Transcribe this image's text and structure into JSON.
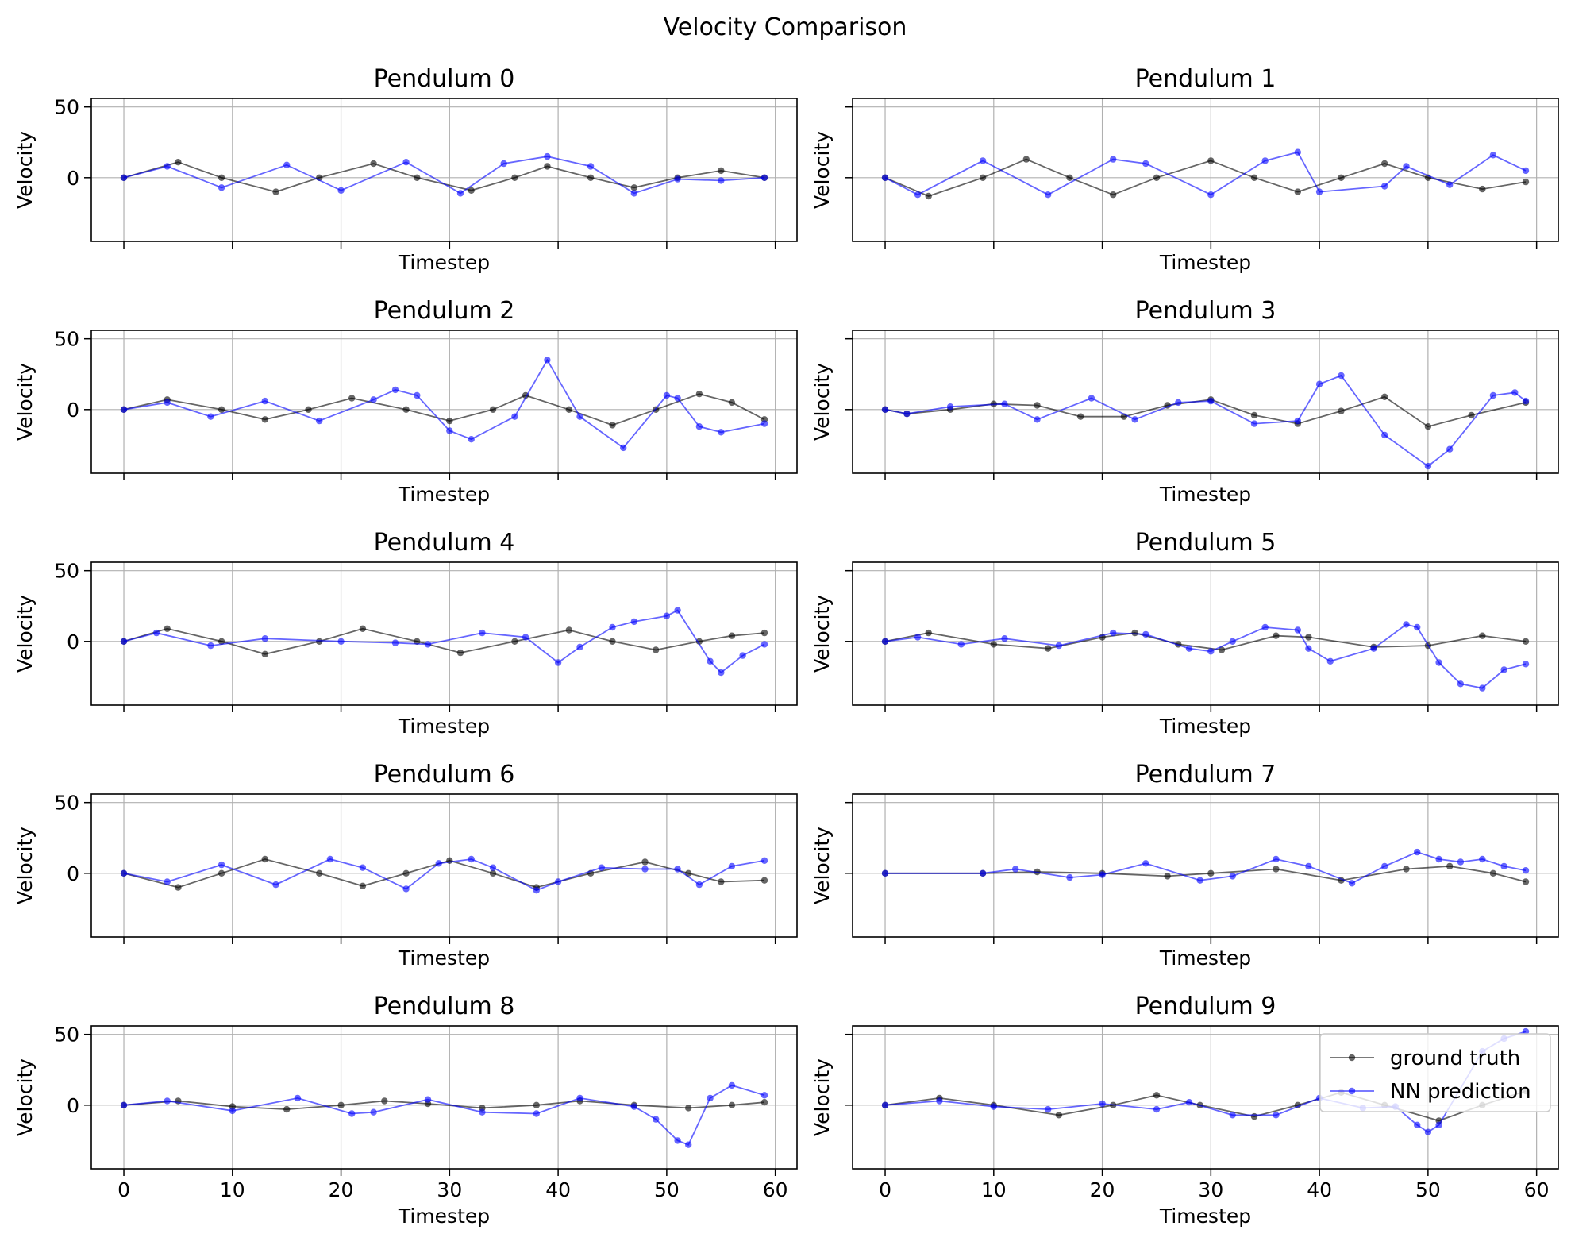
{
  "figure": {
    "title": "Velocity Comparison"
  },
  "colors": {
    "ground_truth": "#000000",
    "nn_prediction": "#0000ff",
    "grid": "#b0b0b0"
  },
  "legend": {
    "location": "upper-right",
    "panel": 9,
    "entries": [
      "ground truth",
      "NN prediction"
    ]
  },
  "chart_data": [
    {
      "type": "line",
      "title": "Pendulum 0",
      "xlabel": "Timestep",
      "ylabel": "Velocity",
      "xlim": [
        -3,
        62
      ],
      "ylim": [
        -45,
        56
      ],
      "xticks": [
        0,
        10,
        20,
        30,
        40,
        50,
        60
      ],
      "yticks": [
        0,
        50
      ],
      "grid": true,
      "series": [
        {
          "name": "ground truth",
          "x": [
            0,
            5,
            9,
            14,
            18,
            23,
            27,
            32,
            36,
            39,
            43,
            47,
            51,
            55,
            59
          ],
          "y": [
            0,
            11,
            0,
            -10,
            0,
            10,
            0,
            -9,
            0,
            8,
            0,
            -7,
            0,
            5,
            0
          ]
        },
        {
          "name": "NN prediction",
          "x": [
            0,
            4,
            9,
            15,
            20,
            26,
            31,
            35,
            39,
            43,
            47,
            51,
            55,
            59
          ],
          "y": [
            0,
            8,
            -7,
            9,
            -9,
            11,
            -11,
            10,
            15,
            8,
            -11,
            -1,
            -2,
            0
          ]
        }
      ]
    },
    {
      "type": "line",
      "title": "Pendulum 1",
      "xlabel": "Timestep",
      "ylabel": "Velocity",
      "xlim": [
        -3,
        62
      ],
      "ylim": [
        -45,
        56
      ],
      "xticks": [
        0,
        10,
        20,
        30,
        40,
        50,
        60
      ],
      "yticks": [
        0,
        50
      ],
      "grid": true,
      "series": [
        {
          "name": "ground truth",
          "x": [
            0,
            4,
            9,
            13,
            17,
            21,
            25,
            30,
            34,
            38,
            42,
            46,
            50,
            55,
            59
          ],
          "y": [
            0,
            -13,
            0,
            13,
            0,
            -12,
            0,
            12,
            0,
            -10,
            0,
            10,
            0,
            -8,
            -3
          ]
        },
        {
          "name": "NN prediction",
          "x": [
            0,
            3,
            9,
            15,
            21,
            24,
            30,
            35,
            38,
            40,
            46,
            48,
            52,
            56,
            59
          ],
          "y": [
            0,
            -12,
            12,
            -12,
            13,
            10,
            -12,
            12,
            18,
            -10,
            -6,
            8,
            -5,
            16,
            5
          ]
        }
      ]
    },
    {
      "type": "line",
      "title": "Pendulum 2",
      "xlabel": "Timestep",
      "ylabel": "Velocity",
      "xlim": [
        -3,
        62
      ],
      "ylim": [
        -45,
        56
      ],
      "xticks": [
        0,
        10,
        20,
        30,
        40,
        50,
        60
      ],
      "yticks": [
        0,
        50
      ],
      "grid": true,
      "series": [
        {
          "name": "ground truth",
          "x": [
            0,
            4,
            9,
            13,
            17,
            21,
            26,
            30,
            34,
            37,
            41,
            45,
            49,
            53,
            56,
            59
          ],
          "y": [
            0,
            7,
            0,
            -7,
            0,
            8,
            0,
            -8,
            0,
            10,
            0,
            -11,
            0,
            11,
            5,
            -7
          ]
        },
        {
          "name": "NN prediction",
          "x": [
            0,
            4,
            8,
            13,
            18,
            23,
            25,
            27,
            30,
            32,
            36,
            39,
            42,
            46,
            50,
            51,
            53,
            55,
            59
          ],
          "y": [
            0,
            5,
            -5,
            6,
            -8,
            7,
            14,
            10,
            -15,
            -21,
            -5,
            35,
            -5,
            -27,
            10,
            8,
            -12,
            -16,
            -10
          ]
        }
      ]
    },
    {
      "type": "line",
      "title": "Pendulum 3",
      "xlabel": "Timestep",
      "ylabel": "Velocity",
      "xlim": [
        -3,
        62
      ],
      "ylim": [
        -45,
        56
      ],
      "xticks": [
        0,
        10,
        20,
        30,
        40,
        50,
        60
      ],
      "yticks": [
        0,
        50
      ],
      "grid": true,
      "series": [
        {
          "name": "ground truth",
          "x": [
            0,
            2,
            6,
            10,
            14,
            18,
            22,
            26,
            30,
            34,
            38,
            42,
            46,
            50,
            54,
            59
          ],
          "y": [
            0,
            -3,
            0,
            4,
            3,
            -5,
            -5,
            3,
            7,
            -4,
            -10,
            -1,
            9,
            -12,
            -4,
            5
          ]
        },
        {
          "name": "NN prediction",
          "x": [
            0,
            2,
            6,
            11,
            14,
            19,
            23,
            27,
            30,
            34,
            38,
            40,
            42,
            46,
            50,
            52,
            56,
            58,
            59
          ],
          "y": [
            0,
            -3,
            2,
            4,
            -7,
            8,
            -7,
            5,
            6,
            -10,
            -8,
            18,
            24,
            -18,
            -40,
            -28,
            10,
            12,
            6
          ]
        }
      ]
    },
    {
      "type": "line",
      "title": "Pendulum 4",
      "xlabel": "Timestep",
      "ylabel": "Velocity",
      "xlim": [
        -3,
        62
      ],
      "ylim": [
        -45,
        56
      ],
      "xticks": [
        0,
        10,
        20,
        30,
        40,
        50,
        60
      ],
      "yticks": [
        0,
        50
      ],
      "grid": true,
      "series": [
        {
          "name": "ground truth",
          "x": [
            0,
            4,
            9,
            13,
            18,
            22,
            27,
            31,
            36,
            41,
            45,
            49,
            53,
            56,
            59
          ],
          "y": [
            0,
            9,
            0,
            -9,
            0,
            9,
            0,
            -8,
            0,
            8,
            0,
            -6,
            0,
            4,
            6
          ]
        },
        {
          "name": "NN prediction",
          "x": [
            0,
            3,
            8,
            13,
            20,
            25,
            28,
            33,
            37,
            40,
            42,
            45,
            47,
            50,
            51,
            54,
            55,
            57,
            59
          ],
          "y": [
            0,
            6,
            -3,
            2,
            0,
            -1,
            -2,
            6,
            3,
            -15,
            -4,
            10,
            14,
            18,
            22,
            -14,
            -22,
            -10,
            -2
          ]
        }
      ]
    },
    {
      "type": "line",
      "title": "Pendulum 5",
      "xlabel": "Timestep",
      "ylabel": "Velocity",
      "xlim": [
        -3,
        62
      ],
      "ylim": [
        -45,
        56
      ],
      "xticks": [
        0,
        10,
        20,
        30,
        40,
        50,
        60
      ],
      "yticks": [
        0,
        50
      ],
      "grid": true,
      "series": [
        {
          "name": "ground truth",
          "x": [
            0,
            4,
            10,
            15,
            20,
            23,
            27,
            31,
            36,
            39,
            45,
            50,
            55,
            59
          ],
          "y": [
            0,
            6,
            -2,
            -5,
            3,
            6,
            -2,
            -6,
            4,
            3,
            -4,
            -3,
            4,
            0
          ]
        },
        {
          "name": "NN prediction",
          "x": [
            0,
            3,
            7,
            11,
            16,
            21,
            24,
            28,
            30,
            32,
            35,
            38,
            39,
            41,
            45,
            48,
            49,
            51,
            53,
            55,
            57,
            59
          ],
          "y": [
            0,
            3,
            -2,
            2,
            -3,
            6,
            5,
            -5,
            -7,
            0,
            10,
            8,
            -5,
            -14,
            -5,
            12,
            10,
            -15,
            -30,
            -33,
            -20,
            -16
          ]
        }
      ]
    },
    {
      "type": "line",
      "title": "Pendulum 6",
      "xlabel": "Timestep",
      "ylabel": "Velocity",
      "xlim": [
        -3,
        62
      ],
      "ylim": [
        -45,
        56
      ],
      "xticks": [
        0,
        10,
        20,
        30,
        40,
        50,
        60
      ],
      "yticks": [
        0,
        50
      ],
      "grid": true,
      "series": [
        {
          "name": "ground truth",
          "x": [
            0,
            5,
            9,
            13,
            18,
            22,
            26,
            30,
            34,
            38,
            43,
            48,
            52,
            55,
            59
          ],
          "y": [
            0,
            -10,
            0,
            10,
            0,
            -9,
            0,
            9,
            0,
            -10,
            0,
            8,
            0,
            -6,
            -5
          ]
        },
        {
          "name": "NN prediction",
          "x": [
            0,
            4,
            9,
            14,
            19,
            22,
            26,
            29,
            32,
            34,
            38,
            40,
            44,
            48,
            51,
            53,
            56,
            59
          ],
          "y": [
            0,
            -6,
            6,
            -8,
            10,
            4,
            -11,
            7,
            10,
            4,
            -12,
            -6,
            4,
            3,
            3,
            -8,
            5,
            9
          ]
        }
      ]
    },
    {
      "type": "line",
      "title": "Pendulum 7",
      "xlabel": "Timestep",
      "ylabel": "Velocity",
      "xlim": [
        -3,
        62
      ],
      "ylim": [
        -45,
        56
      ],
      "xticks": [
        0,
        10,
        20,
        30,
        40,
        50,
        60
      ],
      "yticks": [
        0,
        50
      ],
      "grid": true,
      "series": [
        {
          "name": "ground truth",
          "x": [
            0,
            9,
            14,
            20,
            26,
            30,
            36,
            42,
            48,
            52,
            56,
            59
          ],
          "y": [
            0,
            0,
            1,
            0,
            -2,
            0,
            3,
            -5,
            3,
            5,
            0,
            -6
          ]
        },
        {
          "name": "NN prediction",
          "x": [
            0,
            9,
            12,
            17,
            20,
            24,
            29,
            32,
            36,
            39,
            43,
            46,
            49,
            51,
            53,
            55,
            57,
            59
          ],
          "y": [
            0,
            0,
            3,
            -3,
            -1,
            7,
            -5,
            -2,
            10,
            5,
            -7,
            5,
            15,
            10,
            8,
            10,
            5,
            2
          ]
        }
      ]
    },
    {
      "type": "line",
      "title": "Pendulum 8",
      "xlabel": "Timestep",
      "ylabel": "Velocity",
      "xlim": [
        -3,
        62
      ],
      "ylim": [
        -45,
        56
      ],
      "xticks": [
        0,
        10,
        20,
        30,
        40,
        50,
        60
      ],
      "yticks": [
        0,
        50
      ],
      "grid": true,
      "series": [
        {
          "name": "ground truth",
          "x": [
            0,
            5,
            10,
            15,
            20,
            24,
            28,
            33,
            38,
            42,
            47,
            52,
            56,
            59
          ],
          "y": [
            0,
            3,
            -1,
            -3,
            0,
            3,
            1,
            -2,
            0,
            3,
            0,
            -2,
            0,
            2
          ]
        },
        {
          "name": "NN prediction",
          "x": [
            0,
            4,
            10,
            16,
            21,
            23,
            28,
            33,
            38,
            42,
            47,
            49,
            51,
            52,
            54,
            56,
            59
          ],
          "y": [
            0,
            3,
            -4,
            5,
            -6,
            -5,
            4,
            -5,
            -6,
            5,
            -1,
            -10,
            -25,
            -28,
            5,
            14,
            7
          ]
        }
      ]
    },
    {
      "type": "line",
      "title": "Pendulum 9",
      "xlabel": "Timestep",
      "ylabel": "Velocity",
      "xlim": [
        -3,
        62
      ],
      "ylim": [
        -45,
        56
      ],
      "xticks": [
        0,
        10,
        20,
        30,
        40,
        50,
        60
      ],
      "yticks": [
        0,
        50
      ],
      "grid": true,
      "series": [
        {
          "name": "ground truth",
          "x": [
            0,
            5,
            10,
            16,
            21,
            25,
            29,
            34,
            38,
            42,
            46,
            51,
            55,
            59
          ],
          "y": [
            0,
            5,
            0,
            -7,
            0,
            7,
            0,
            -8,
            0,
            9,
            0,
            -11,
            0,
            10
          ]
        },
        {
          "name": "NN prediction",
          "x": [
            0,
            5,
            10,
            15,
            20,
            25,
            28,
            32,
            36,
            40,
            44,
            47,
            49,
            50,
            51,
            55,
            57,
            59
          ],
          "y": [
            0,
            3,
            -1,
            -3,
            1,
            -3,
            2,
            -7,
            -7,
            5,
            -2,
            -1,
            -14,
            -19,
            -14,
            38,
            47,
            52
          ]
        }
      ]
    }
  ]
}
